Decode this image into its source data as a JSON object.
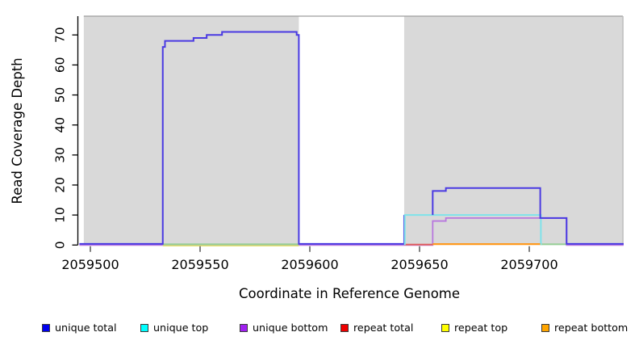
{
  "figure": {
    "xlabel": "Coordinate in Reference Genome",
    "ylabel": "Read Coverage Depth"
  },
  "chart_data": {
    "type": "line",
    "subtype": "step-coverage",
    "title": "",
    "xlabel": "Coordinate in Reference Genome",
    "ylabel": "Read Coverage Depth",
    "xlim": [
      2059495,
      2059743
    ],
    "ylim": [
      0,
      76
    ],
    "xticks": [
      2059500,
      2059550,
      2059600,
      2059650,
      2059700
    ],
    "yticks": [
      0,
      10,
      20,
      30,
      40,
      50,
      60,
      70
    ],
    "grid": false,
    "panel_fill": "#d9d9d9",
    "panel_border": "#9e9e9e",
    "shaded_regions": [
      [
        2059497,
        2059595
      ],
      [
        2059643,
        2059743
      ]
    ],
    "baseline_blend_color": "#94cd94",
    "baseline_blend_segments": [
      [
        2059533,
        2059595
      ],
      [
        2059705,
        2059717
      ]
    ],
    "series": [
      {
        "name": "unique total",
        "color": "#4a3ae2",
        "points": [
          [
            2059495,
            0
          ],
          [
            2059533,
            0
          ],
          [
            2059533,
            66
          ],
          [
            2059534,
            66
          ],
          [
            2059534,
            68
          ],
          [
            2059547,
            68
          ],
          [
            2059547,
            69
          ],
          [
            2059553,
            69
          ],
          [
            2059553,
            70
          ],
          [
            2059560,
            70
          ],
          [
            2059560,
            71
          ],
          [
            2059594,
            71
          ],
          [
            2059594,
            70
          ],
          [
            2059595,
            70
          ],
          [
            2059595,
            0
          ],
          [
            2059643,
            0
          ],
          [
            2059643,
            10
          ],
          [
            2059656,
            10
          ],
          [
            2059656,
            18
          ],
          [
            2059662,
            18
          ],
          [
            2059662,
            19
          ],
          [
            2059705,
            19
          ],
          [
            2059705,
            9
          ],
          [
            2059717,
            9
          ],
          [
            2059717,
            0
          ],
          [
            2059743,
            0
          ]
        ]
      },
      {
        "name": "unique top",
        "color": "#7fe3ea",
        "points": [
          [
            2059643,
            0
          ],
          [
            2059643,
            10
          ],
          [
            2059705,
            10
          ],
          [
            2059705,
            0
          ]
        ]
      },
      {
        "name": "unique bottom",
        "color": "#b877de",
        "points": [
          [
            2059495,
            0
          ],
          [
            2059656,
            0
          ],
          [
            2059656,
            8
          ],
          [
            2059662,
            8
          ],
          [
            2059662,
            9
          ],
          [
            2059705,
            9
          ],
          [
            2059717,
            9
          ],
          [
            2059717,
            0
          ],
          [
            2059743,
            0
          ]
        ]
      },
      {
        "name": "repeat total",
        "color": "#e06060",
        "points": [
          [
            2059643,
            0
          ],
          [
            2059656,
            0
          ]
        ]
      },
      {
        "name": "repeat top",
        "color": "#e3e370",
        "points": [
          [
            2059533,
            0
          ],
          [
            2059595,
            0
          ]
        ]
      },
      {
        "name": "repeat bottom",
        "color": "#ff9614",
        "points": [
          [
            2059656,
            0
          ],
          [
            2059705,
            0
          ]
        ]
      }
    ],
    "legend": {
      "position": "bottom",
      "items": [
        {
          "label": "unique total",
          "color": "#0000ee"
        },
        {
          "label": "unique top",
          "color": "#00ffff"
        },
        {
          "label": "unique bottom",
          "color": "#a020f0"
        },
        {
          "label": "repeat total",
          "color": "#ee0000"
        },
        {
          "label": "repeat top",
          "color": "#ffff00"
        },
        {
          "label": "repeat bottom",
          "color": "#ffa500"
        }
      ]
    }
  }
}
